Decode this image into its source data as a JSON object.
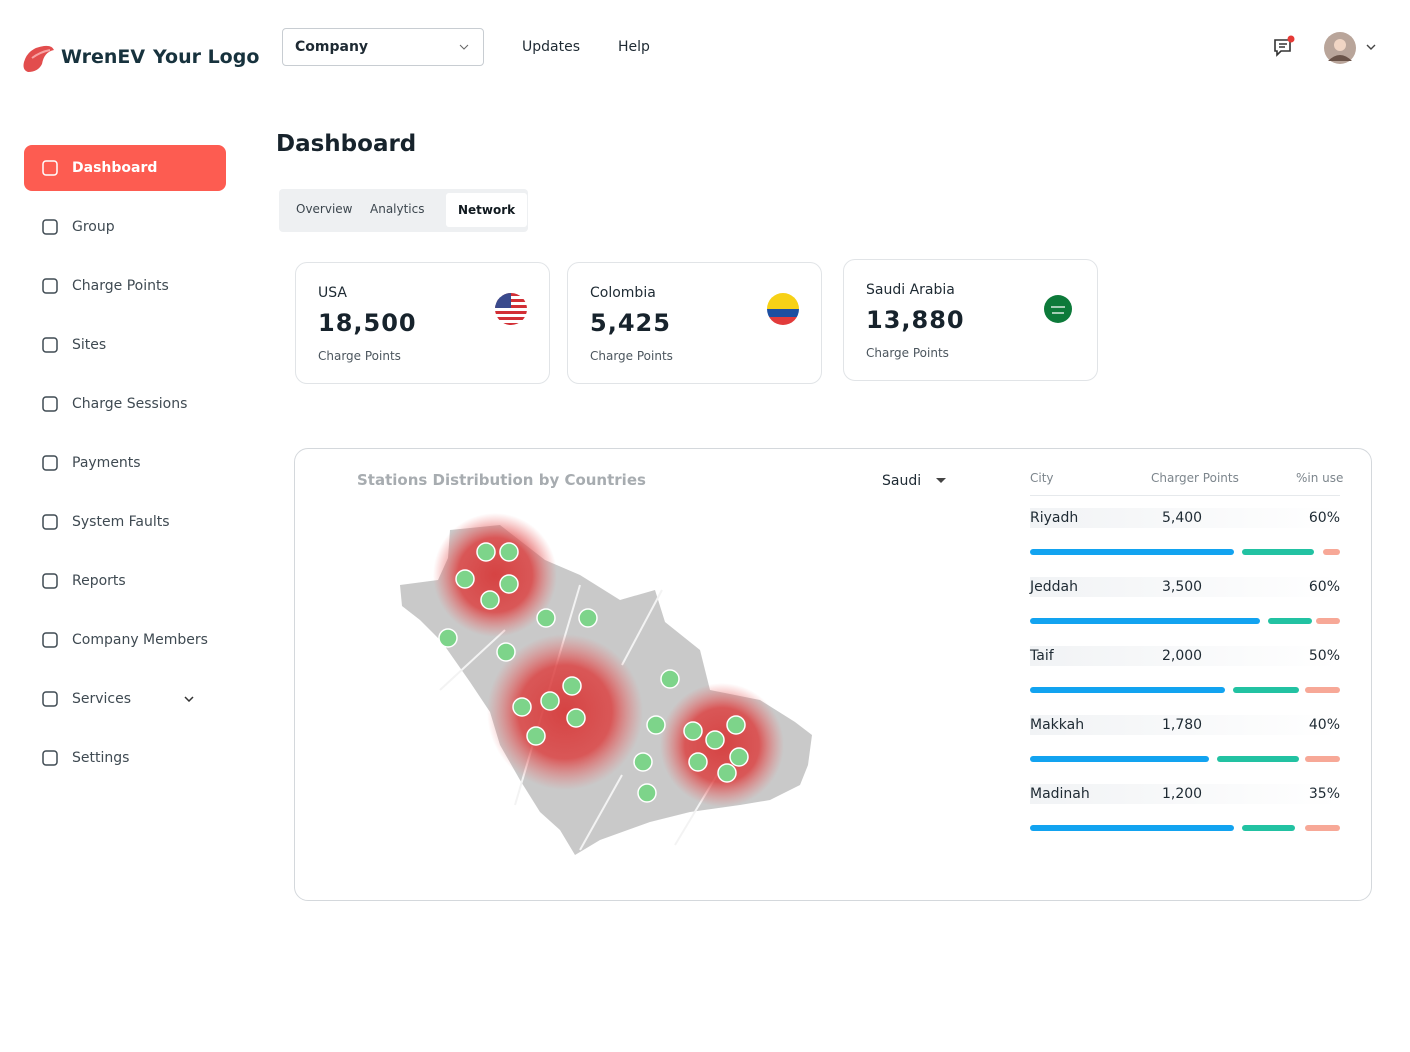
{
  "header": {
    "brand": "WrenEV",
    "logo_text": "Your Logo",
    "company_select": "Company",
    "nav": [
      "Updates",
      "Help"
    ]
  },
  "sidebar": {
    "items": [
      "Dashboard",
      "Group",
      "Charge Points",
      "Sites",
      "Charge Sessions",
      "Payments",
      "System Faults",
      "Reports",
      "Company Members",
      "Services",
      "Settings"
    ]
  },
  "page": {
    "title": "Dashboard",
    "tabs": [
      "Overview",
      "Analytics",
      "Network"
    ]
  },
  "cards": [
    {
      "country": "USA",
      "value": "18,500",
      "label": "Charge Points"
    },
    {
      "country": "Colombia",
      "value": "5,425",
      "label": "Charge Points"
    },
    {
      "country": "Saudi Arabia",
      "value": "13,880",
      "label": "Charge Points"
    }
  ],
  "distribution": {
    "title": "Stations Distribution by Countries",
    "filter": "Saudi",
    "columns": [
      "City",
      "Charger Points",
      "%in use"
    ],
    "rows": [
      [
        "Riyadh",
        "5,400",
        "60%"
      ],
      [
        "Jeddah",
        "3,500",
        "60%"
      ],
      [
        "Taif",
        "2,000",
        "50%"
      ],
      [
        "Makkah",
        "1,780",
        "40%"
      ],
      [
        "Madinah",
        "1,200",
        "35%"
      ]
    ]
  }
}
